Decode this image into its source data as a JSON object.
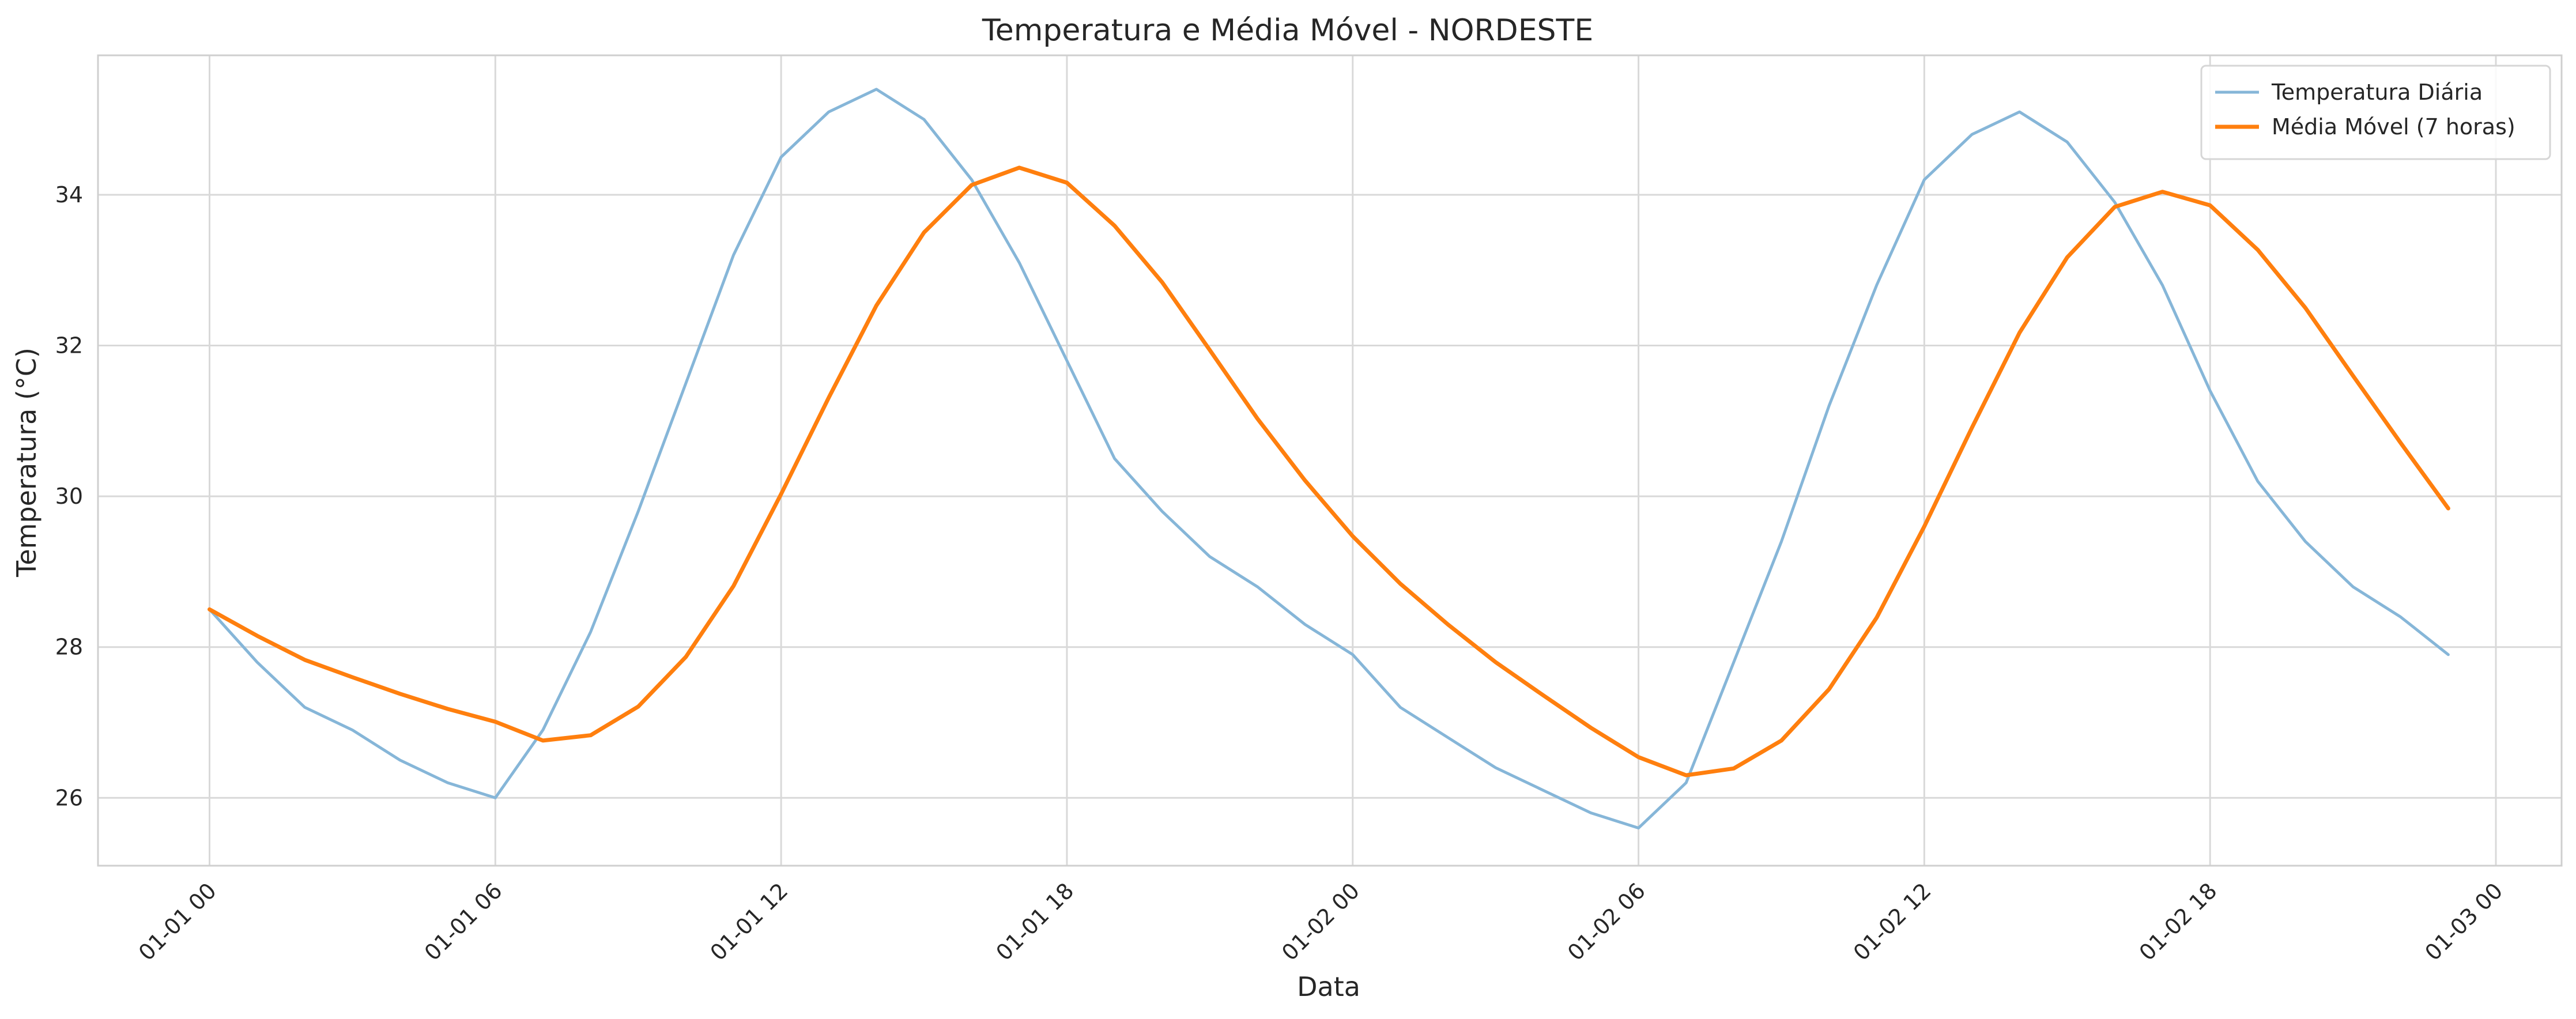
{
  "chart_data": {
    "type": "line",
    "title": "Temperatura e Média Móvel - NORDESTE",
    "xlabel": "Data",
    "ylabel": "Temperatura (°C)",
    "x_ticks": [
      "01-01 00",
      "01-01 06",
      "01-01 12",
      "01-01 18",
      "01-02 00",
      "01-02 06",
      "01-02 12",
      "01-02 18",
      "01-03 00"
    ],
    "y_ticks": [
      "26",
      "28",
      "30",
      "32",
      "34"
    ],
    "xlim": [
      "2024-01-01T00:00",
      "2024-01-03T00:00"
    ],
    "ylim": [
      25.1,
      35.85
    ],
    "grid": true,
    "legend_position": "top-right",
    "x": [
      "01-01 00",
      "01-01 01",
      "01-01 02",
      "01-01 03",
      "01-01 04",
      "01-01 05",
      "01-01 06",
      "01-01 07",
      "01-01 08",
      "01-01 09",
      "01-01 10",
      "01-01 11",
      "01-01 12",
      "01-01 13",
      "01-01 14",
      "01-01 15",
      "01-01 16",
      "01-01 17",
      "01-01 18",
      "01-01 19",
      "01-01 20",
      "01-01 21",
      "01-01 22",
      "01-01 23",
      "01-02 00",
      "01-02 01",
      "01-02 02",
      "01-02 03",
      "01-02 04",
      "01-02 05",
      "01-02 06",
      "01-02 07",
      "01-02 08",
      "01-02 09",
      "01-02 10",
      "01-02 11",
      "01-02 12",
      "01-02 13",
      "01-02 14",
      "01-02 15",
      "01-02 16",
      "01-02 17",
      "01-02 18",
      "01-02 19",
      "01-02 20",
      "01-02 21",
      "01-02 22",
      "01-02 23"
    ],
    "series": [
      {
        "name": "Temperatura Diária",
        "color": "#86b6d8",
        "values": [
          28.5,
          27.8,
          27.2,
          26.9,
          26.5,
          26.2,
          26.0,
          26.9,
          28.2,
          29.8,
          31.5,
          33.2,
          34.5,
          35.1,
          35.4,
          35.0,
          34.2,
          33.1,
          31.8,
          30.5,
          29.8,
          29.2,
          28.8,
          28.3,
          27.9,
          27.2,
          26.8,
          26.4,
          26.1,
          25.8,
          25.6,
          26.2,
          27.8,
          29.4,
          31.2,
          32.8,
          34.2,
          34.8,
          35.1,
          34.7,
          33.9,
          32.8,
          31.4,
          30.2,
          29.4,
          28.8,
          28.4,
          27.9
        ]
      },
      {
        "name": "Média Móvel (7 horas)",
        "color": "#ff7f0e",
        "values": [
          28.5,
          28.15,
          27.83,
          27.6,
          27.38,
          27.18,
          27.01,
          26.76,
          26.83,
          27.21,
          27.87,
          28.81,
          30.03,
          31.31,
          32.53,
          33.5,
          34.13,
          34.36,
          34.16,
          33.59,
          32.84,
          31.94,
          31.03,
          30.21,
          29.47,
          28.84,
          28.3,
          27.8,
          27.36,
          26.93,
          26.54,
          26.3,
          26.39,
          26.76,
          27.44,
          28.39,
          29.6,
          30.91,
          32.17,
          33.17,
          33.84,
          34.04,
          33.86,
          33.27,
          32.5,
          31.6,
          30.71,
          29.84
        ]
      }
    ]
  }
}
